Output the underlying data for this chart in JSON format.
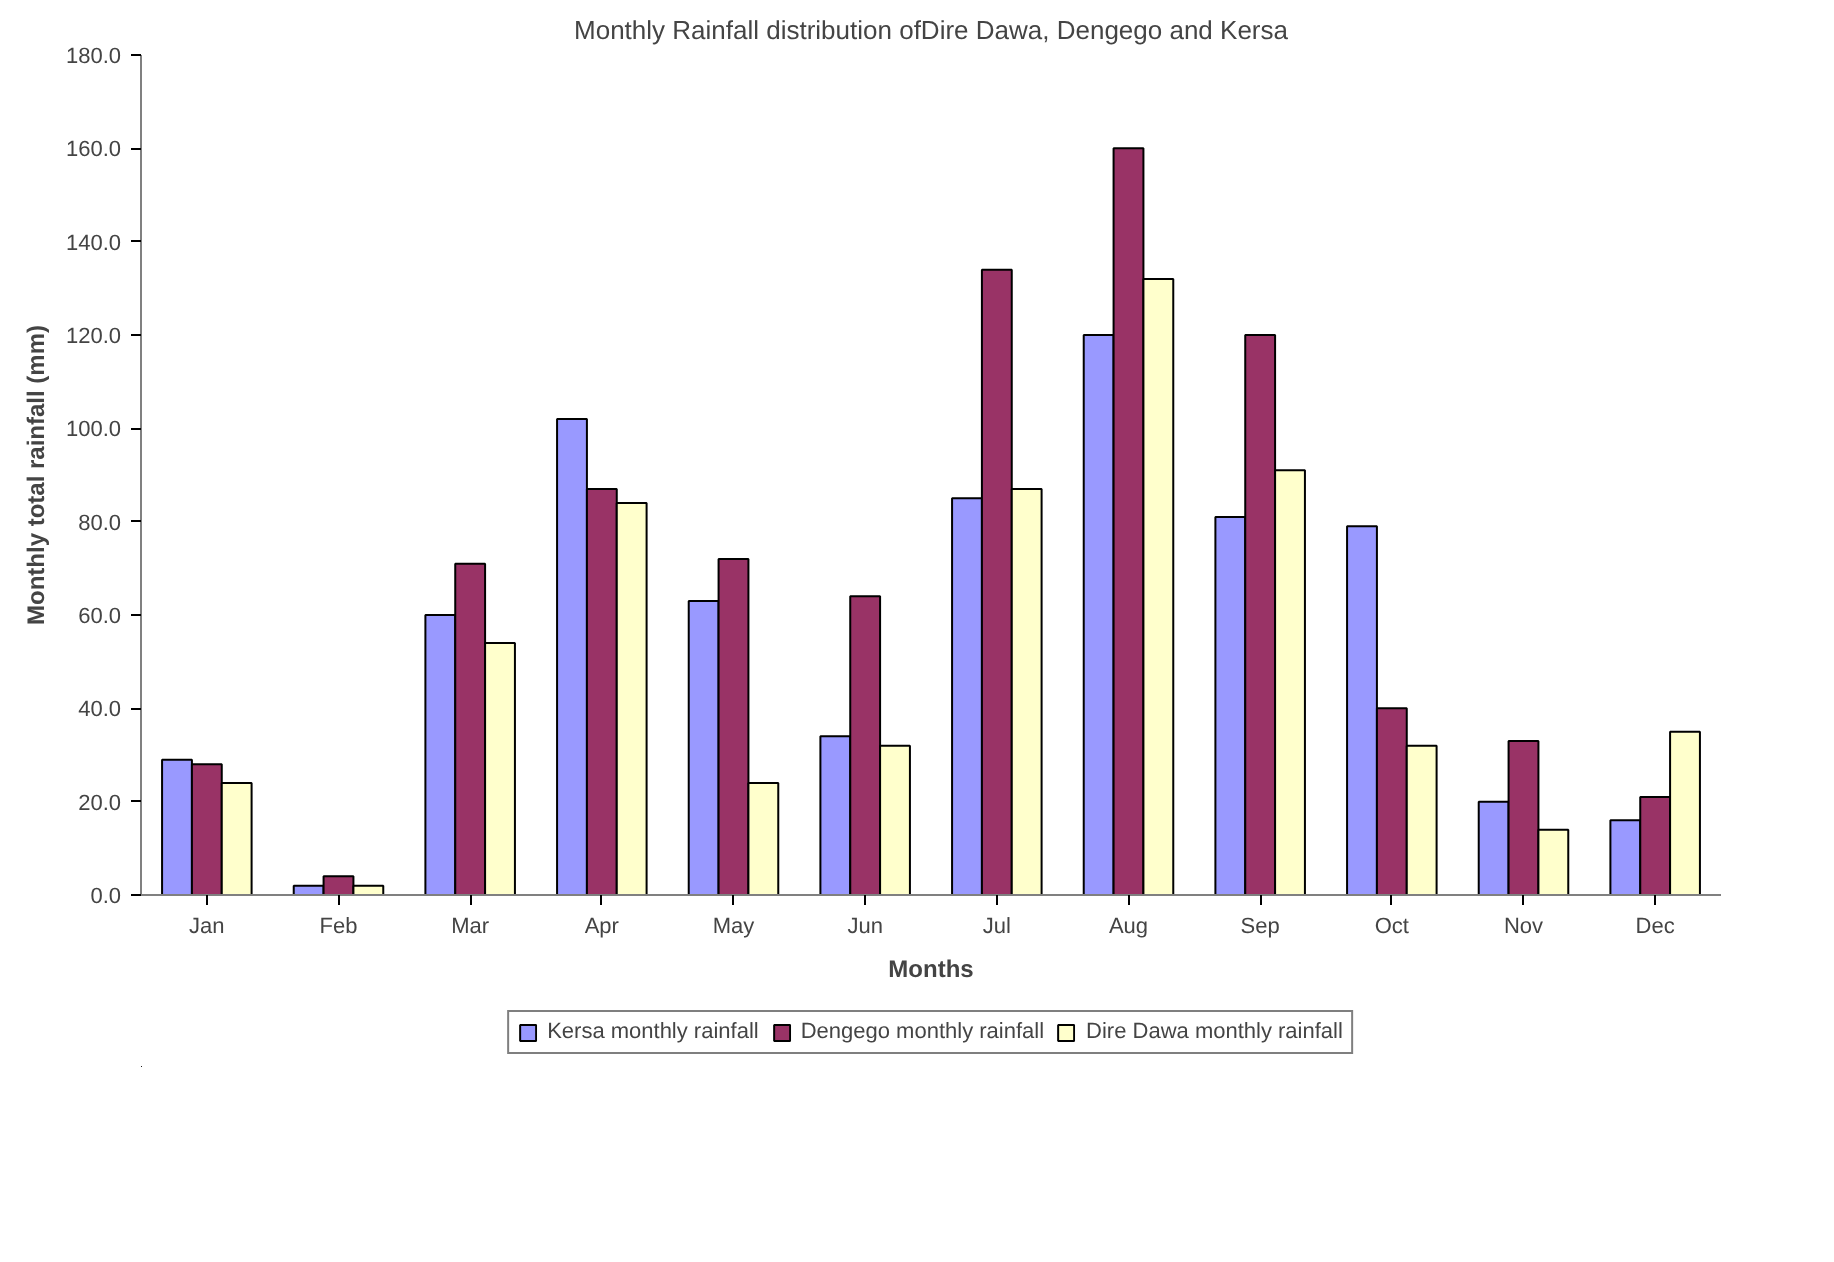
{
  "chart_data": {
    "type": "bar",
    "title": "Monthly Rainfall distribution ofDire Dawa, Dengego and Kersa",
    "xlabel": "Months",
    "ylabel": "Monthly total rainfall (mm)",
    "categories": [
      "Jan",
      "Feb",
      "Mar",
      "Apr",
      "May",
      "Jun",
      "Jul",
      "Aug",
      "Sep",
      "Oct",
      "Nov",
      "Dec"
    ],
    "series": [
      {
        "name": "Kersa monthly rainfall",
        "color": "#9999ff",
        "values": [
          29,
          2,
          60,
          102,
          63,
          34,
          85,
          120,
          81,
          79,
          20,
          16
        ]
      },
      {
        "name": "Dengego monthly rainfall",
        "color": "#993366",
        "values": [
          28,
          4,
          71,
          87,
          72,
          64,
          134,
          160,
          120,
          40,
          33,
          21
        ]
      },
      {
        "name": "Dire Dawa monthly rainfall",
        "color": "#ffffcc",
        "values": [
          24,
          2,
          54,
          84,
          24,
          32,
          87,
          132,
          91,
          32,
          14,
          35
        ]
      }
    ],
    "ylim": [
      0,
      180
    ],
    "yticks": [
      {
        "value": 0,
        "label": "0.0"
      },
      {
        "value": 20,
        "label": "20.0"
      },
      {
        "value": 40,
        "label": "40.0"
      },
      {
        "value": 60,
        "label": "60.0"
      },
      {
        "value": 80,
        "label": "80.0"
      },
      {
        "value": 100,
        "label": "100.0"
      },
      {
        "value": 120,
        "label": "120.0"
      },
      {
        "value": 140,
        "label": "140.0"
      },
      {
        "value": 160,
        "label": "160.0"
      },
      {
        "value": 180,
        "label": "180.0"
      }
    ],
    "grid": false,
    "legend": "bottom"
  }
}
